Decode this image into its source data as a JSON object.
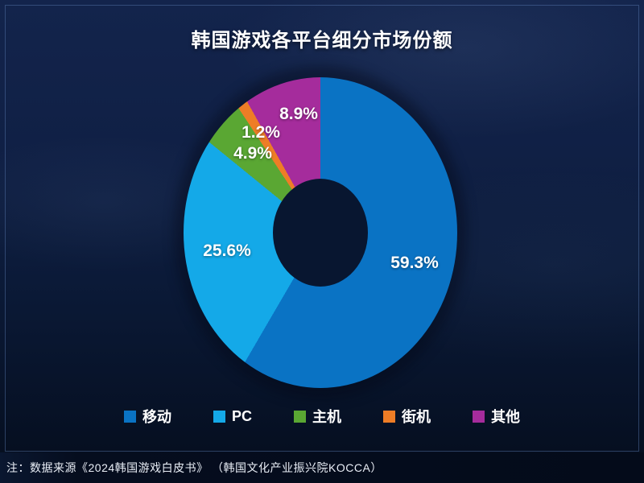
{
  "title": "韩国游戏各平台细分市场份额",
  "note": "注：数据来源《2024韩国游戏白皮书》 （韩国文化产业振兴院KOCCA）",
  "chart_data": {
    "type": "pie",
    "subtype": "donut",
    "title": "韩国游戏各平台细分市场份额",
    "categories": [
      "移动",
      "PC",
      "主机",
      "街机",
      "其他"
    ],
    "values": [
      59.3,
      25.6,
      4.9,
      1.2,
      8.9
    ],
    "labels": [
      "59.3%",
      "25.6%",
      "4.9%",
      "1.2%",
      "8.9%"
    ],
    "unit": "%",
    "colors": [
      "#0a73c4",
      "#14a9e8",
      "#5aa733",
      "#ee7d26",
      "#a52c9c"
    ],
    "hole_color": "#081630",
    "start_angle_deg": 0,
    "direction": "clockwise",
    "legend_position": "bottom",
    "background_color": "#0c1b3a",
    "text_color": "#ffffff",
    "source": "注：数据来源《2024韩国游戏白皮书》 （韩国文化产业振兴院KOCCA）"
  }
}
